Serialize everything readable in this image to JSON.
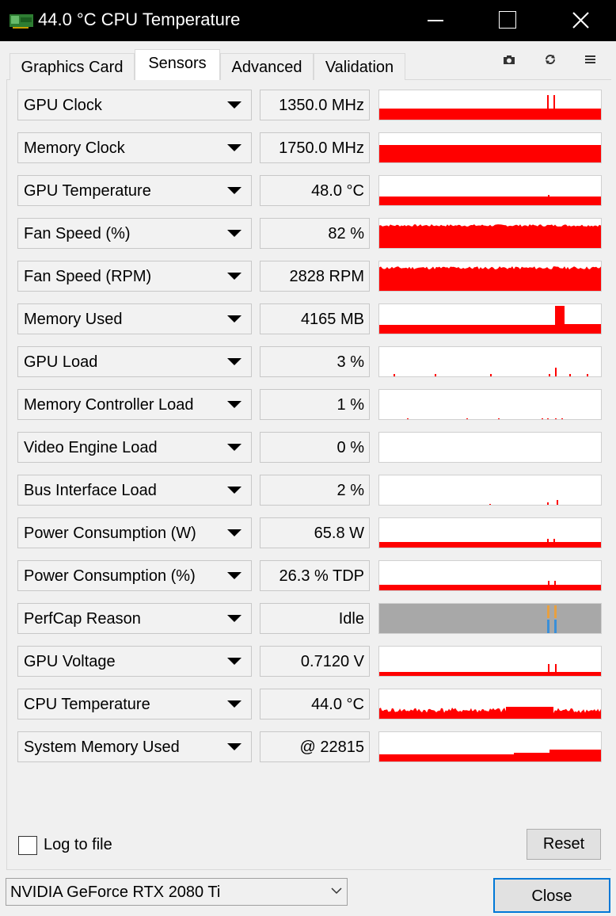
{
  "window": {
    "title": "44.0 °C CPU Temperature"
  },
  "tabs": [
    {
      "label": "Graphics Card"
    },
    {
      "label": "Sensors"
    },
    {
      "label": "Advanced"
    },
    {
      "label": "Validation"
    }
  ],
  "sensors": [
    {
      "name": "GPU Clock",
      "value": "1350.0 MHz"
    },
    {
      "name": "Memory Clock",
      "value": "1750.0 MHz"
    },
    {
      "name": "GPU Temperature",
      "value": "48.0 °C"
    },
    {
      "name": "Fan Speed (%)",
      "value": "82 %"
    },
    {
      "name": "Fan Speed (RPM)",
      "value": "2828 RPM"
    },
    {
      "name": "Memory Used",
      "value": "4165 MB"
    },
    {
      "name": "GPU Load",
      "value": "3 %"
    },
    {
      "name": "Memory Controller Load",
      "value": "1 %"
    },
    {
      "name": "Video Engine Load",
      "value": "0 %"
    },
    {
      "name": "Bus Interface Load",
      "value": "2 %"
    },
    {
      "name": "Power Consumption (W)",
      "value": "65.8 W"
    },
    {
      "name": "Power Consumption (%)",
      "value": "26.3 % TDP"
    },
    {
      "name": "PerfCap Reason",
      "value": "Idle"
    },
    {
      "name": "GPU Voltage",
      "value": "0.7120 V"
    },
    {
      "name": "CPU Temperature",
      "value": "44.0 °C"
    },
    {
      "name": "System Memory Used",
      "value": "@ 22815"
    }
  ],
  "footer": {
    "log_label": "Log to file",
    "log_checked": false,
    "reset_label": "Reset",
    "gpu_selected": "NVIDIA GeForce RTX 2080 Ti",
    "close_label": "Close"
  },
  "icons": {
    "app": "graphics-card-icon",
    "toolbar": [
      "camera-icon",
      "refresh-icon",
      "menu-icon"
    ]
  },
  "colors": {
    "graph": "#ff0000",
    "perfcap_bg": "#a8a8a8",
    "perfcap_orange": "#e8a040",
    "perfcap_blue": "#3a8fd8",
    "focus": "#0078d7"
  }
}
